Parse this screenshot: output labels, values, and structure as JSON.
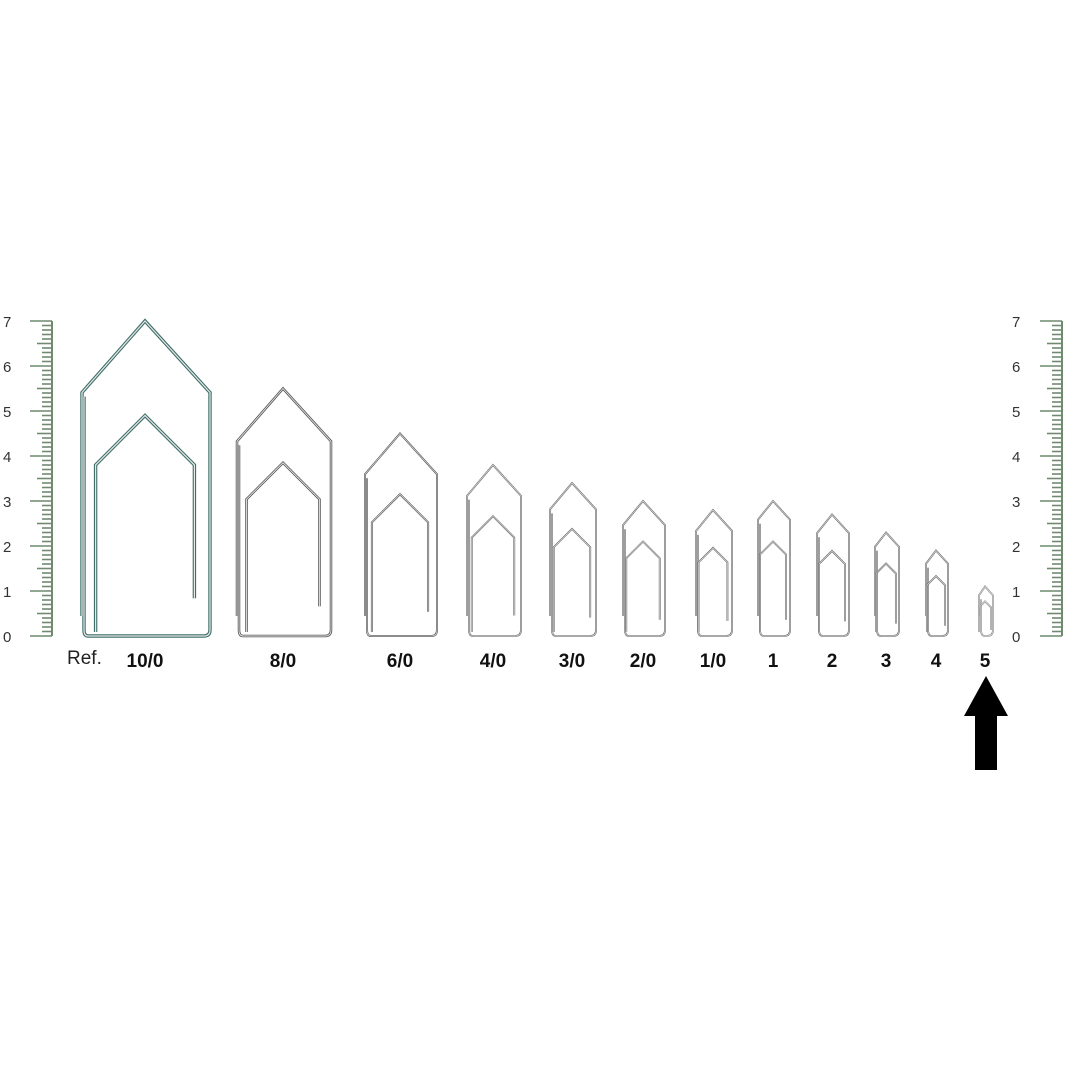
{
  "ref_label": "Ref.",
  "ruler": {
    "ticks": [
      "0",
      "1",
      "2",
      "3",
      "4",
      "5",
      "6",
      "7"
    ],
    "color": "#6f8a6f"
  },
  "clips": [
    {
      "ref": "10/0",
      "height_units": 7.0,
      "color": "#3f6f6a"
    },
    {
      "ref": "8/0",
      "height_units": 5.5,
      "color": "#555555"
    },
    {
      "ref": "6/0",
      "height_units": 4.5,
      "color": "#555555"
    },
    {
      "ref": "4/0",
      "height_units": 3.8,
      "color": "#666666"
    },
    {
      "ref": "3/0",
      "height_units": 3.4,
      "color": "#666666"
    },
    {
      "ref": "2/0",
      "height_units": 3.0,
      "color": "#666666"
    },
    {
      "ref": "1/0",
      "height_units": 2.8,
      "color": "#666666"
    },
    {
      "ref": "1",
      "height_units": 3.0,
      "color": "#666666"
    },
    {
      "ref": "2",
      "height_units": 2.7,
      "color": "#666666"
    },
    {
      "ref": "3",
      "height_units": 2.3,
      "color": "#666666"
    },
    {
      "ref": "4",
      "height_units": 1.9,
      "color": "#666666"
    },
    {
      "ref": "5",
      "height_units": 1.1,
      "color": "#8a8a8a"
    }
  ],
  "highlight": {
    "ref": "5",
    "arrow_icon": "arrow-up-icon",
    "color": "#000000"
  }
}
